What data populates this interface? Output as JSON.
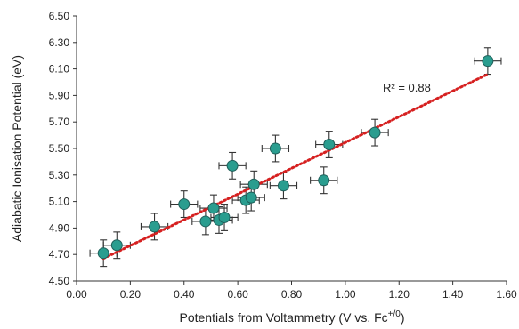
{
  "chart_data": {
    "type": "scatter",
    "title": "",
    "xlabel": "Potentials from Voltammetry (V vs. Fc",
    "xlabel_sup": "+/0",
    "xlabel_end": ")",
    "ylabel": "Adiabatic Ionisation Potential  (eV)",
    "xlim": [
      0.0,
      1.6
    ],
    "ylim": [
      4.5,
      6.5
    ],
    "x_ticks": [
      "0.00",
      "0.20",
      "0.40",
      "0.60",
      "0.80",
      "1.00",
      "1.20",
      "1.40",
      "1.60"
    ],
    "y_ticks": [
      "4.50",
      "4.70",
      "4.90",
      "5.10",
      "5.30",
      "5.50",
      "5.70",
      "5.90",
      "6.10",
      "6.30",
      "6.50"
    ],
    "grid": false,
    "legend": "none",
    "marker_color": "#2a9d8f",
    "marker_edge_color": "#1f5f5a",
    "trendline_color": "#d62020",
    "annotation": "R² = 0.88",
    "trendline": {
      "x0": 0.1,
      "y0": 4.67,
      "x1": 1.53,
      "y1": 6.06
    },
    "x_error": 0.05,
    "y_error": 0.1,
    "points": [
      {
        "x": 0.1,
        "y": 4.71
      },
      {
        "x": 0.15,
        "y": 4.77
      },
      {
        "x": 0.29,
        "y": 4.91
      },
      {
        "x": 0.4,
        "y": 5.08
      },
      {
        "x": 0.48,
        "y": 4.95
      },
      {
        "x": 0.51,
        "y": 5.05
      },
      {
        "x": 0.53,
        "y": 4.96
      },
      {
        "x": 0.55,
        "y": 4.98
      },
      {
        "x": 0.58,
        "y": 5.37
      },
      {
        "x": 0.63,
        "y": 5.11
      },
      {
        "x": 0.65,
        "y": 5.13
      },
      {
        "x": 0.66,
        "y": 5.23
      },
      {
        "x": 0.74,
        "y": 5.5
      },
      {
        "x": 0.77,
        "y": 5.22
      },
      {
        "x": 0.92,
        "y": 5.26
      },
      {
        "x": 0.94,
        "y": 5.53
      },
      {
        "x": 1.11,
        "y": 5.62
      },
      {
        "x": 1.53,
        "y": 6.16
      }
    ]
  }
}
